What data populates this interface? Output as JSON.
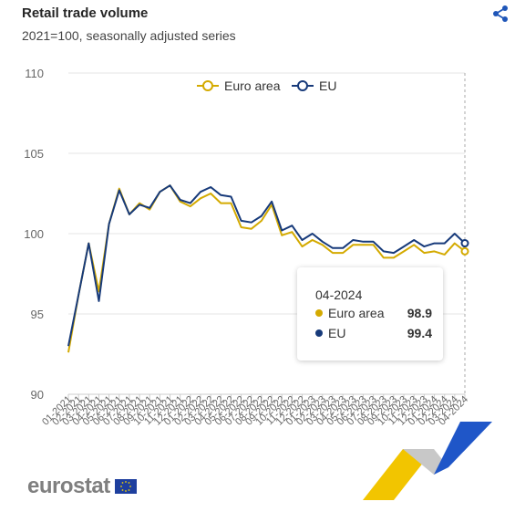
{
  "header": {
    "title": "Retail trade volume",
    "subtitle": "2021=100, seasonally adjusted series"
  },
  "colors": {
    "euro_area": "#D4AA00",
    "eu": "#173A7A",
    "grid": "#E6E6E6",
    "axis_text": "#666666"
  },
  "icons": {
    "share": "share-icon",
    "flag": "eu-flag-icon"
  },
  "tooltip": {
    "date": "04-2024",
    "rows": [
      {
        "label": "Euro area",
        "value": "98.9"
      },
      {
        "label": "EU",
        "value": "99.4"
      }
    ]
  },
  "branding": {
    "logo": "eurostat"
  },
  "chart_data": {
    "type": "line",
    "title": "Retail trade volume",
    "subtitle": "2021=100, seasonally adjusted series",
    "xlabel": "",
    "ylabel": "",
    "ylim": [
      90,
      110
    ],
    "yticks": [
      90,
      95,
      100,
      105,
      110
    ],
    "grid": true,
    "legend": "top-center",
    "categories": [
      "01-2021",
      "02-2021",
      "03-2021",
      "04-2021",
      "05-2021",
      "06-2021",
      "07-2021",
      "08-2021",
      "09-2021",
      "10-2021",
      "11-2021",
      "12-2021",
      "01-2022",
      "02-2022",
      "03-2022",
      "04-2022",
      "05-2022",
      "06-2022",
      "07-2022",
      "08-2022",
      "09-2022",
      "10-2022",
      "11-2022",
      "12-2022",
      "01-2023",
      "02-2023",
      "03-2023",
      "04-2023",
      "05-2023",
      "06-2023",
      "07-2023",
      "08-2023",
      "09-2023",
      "10-2023",
      "11-2023",
      "12-2023",
      "01-2024",
      "02-2024",
      "03-2024",
      "04-2024"
    ],
    "series": [
      {
        "name": "Euro area",
        "values": [
          92.6,
          96.2,
          99.4,
          96.4,
          100.6,
          102.8,
          101.2,
          101.9,
          101.5,
          102.6,
          103.0,
          102.0,
          101.7,
          102.2,
          102.5,
          101.9,
          101.9,
          100.4,
          100.3,
          100.8,
          101.8,
          99.9,
          100.1,
          99.2,
          99.6,
          99.3,
          98.8,
          98.8,
          99.3,
          99.3,
          99.3,
          98.5,
          98.5,
          98.9,
          99.3,
          98.8,
          98.9,
          98.7,
          99.4,
          98.9
        ]
      },
      {
        "name": "EU",
        "values": [
          93.0,
          96.2,
          99.4,
          95.8,
          100.6,
          102.7,
          101.2,
          101.8,
          101.6,
          102.6,
          103.0,
          102.1,
          101.9,
          102.6,
          102.9,
          102.4,
          102.3,
          100.8,
          100.7,
          101.1,
          102.0,
          100.2,
          100.5,
          99.6,
          100.0,
          99.5,
          99.1,
          99.1,
          99.6,
          99.5,
          99.5,
          98.9,
          98.8,
          99.2,
          99.6,
          99.2,
          99.4,
          99.4,
          100.0,
          99.4
        ]
      }
    ]
  }
}
